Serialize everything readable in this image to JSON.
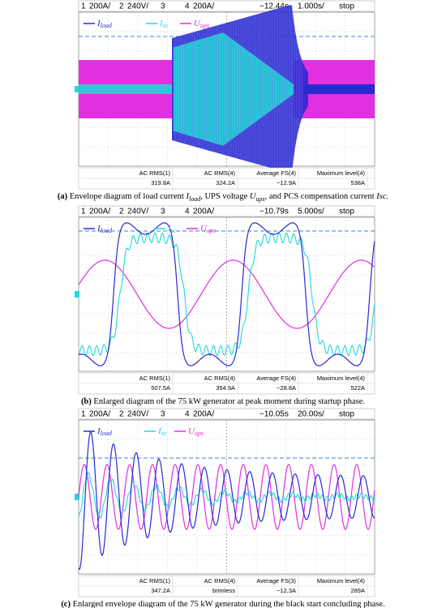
{
  "panels": [
    {
      "header": {
        "ch1_num": "1",
        "ch1": "200A/",
        "ch2_num": "2",
        "ch2": "240V/",
        "ch3_num": "3",
        "ch4_num": "4",
        "ch4": "200A/",
        "time": "−12.44s",
        "scale": "1.000s/",
        "status": "stop"
      },
      "legend": [
        {
          "main": "I",
          "sub": "load"
        },
        {
          "main": "I",
          "sub": "sc"
        },
        {
          "main": "U",
          "sub": "ups"
        }
      ],
      "measurements": [
        {
          "label": "AC RMS(1)",
          "value": "319.8A"
        },
        {
          "label": "AC RMS(4)",
          "value": "324.2A"
        },
        {
          "label": "Average FS(4)",
          "value": "−12.9A"
        },
        {
          "label": "Maximum level(4)",
          "value": "538A"
        }
      ],
      "caption": [
        {
          "text": "(a)",
          "style": "b"
        },
        {
          "text": " Envelope diagram of load current ",
          "style": ""
        },
        {
          "text": "I",
          "style": "i"
        },
        {
          "text": "load",
          "style": "sub"
        },
        {
          "text": ", UPS voltage ",
          "style": ""
        },
        {
          "text": "U",
          "style": "i"
        },
        {
          "text": "ups",
          "style": "sub"
        },
        {
          "text": ", and PCS compensation current ",
          "style": ""
        },
        {
          "text": "Isc.",
          "style": "i"
        }
      ]
    },
    {
      "header": {
        "ch1_num": "1",
        "ch1": "200A/",
        "ch2_num": "2",
        "ch2": "240V/",
        "ch3_num": "3",
        "ch4_num": "4",
        "ch4": "200A/",
        "time": "−10.79s",
        "scale": "5.000s/",
        "status": "stop"
      },
      "legend": [
        {
          "main": "I",
          "sub": "load"
        },
        {
          "main": "I",
          "sub": "sc"
        },
        {
          "main": "U",
          "sub": "ups"
        }
      ],
      "measurements": [
        {
          "label": "AC RMS(1)",
          "value": "507.5A"
        },
        {
          "label": "AC RMS(4)",
          "value": "354.9A"
        },
        {
          "label": "Average FS(4)",
          "value": "−28.8A"
        },
        {
          "label": "Maximum level(4)",
          "value": "522A"
        }
      ],
      "caption": [
        {
          "text": "(b)",
          "style": "b"
        },
        {
          "text": " Enlarged diagram of the 75 kW generator at peak moment during startup phase.",
          "style": ""
        }
      ]
    },
    {
      "header": {
        "ch1_num": "1",
        "ch1": "200A/",
        "ch2_num": "2",
        "ch2": "240V/",
        "ch3_num": "3",
        "ch4_num": "4",
        "ch4": "200A/",
        "time": "−10.05s",
        "scale": "20.00s/",
        "status": "stop"
      },
      "legend": [
        {
          "main": "I",
          "sub": "load"
        },
        {
          "main": "I",
          "sub": "sc"
        },
        {
          "main": "U",
          "sub": "ups"
        }
      ],
      "measurements": [
        {
          "label": "AC RMS(1)",
          "value": "347.2A"
        },
        {
          "label": "AC RMS(4)",
          "value": "brimless"
        },
        {
          "label": "Average FS(3)",
          "value": "−12.3A"
        },
        {
          "label": "Maximum level(4)",
          "value": "289A"
        }
      ],
      "caption": [
        {
          "text": "(c)",
          "style": "b"
        },
        {
          "text": " Enlarged envelope diagram of the 75 kW generator during the black start concluding phase.",
          "style": ""
        }
      ]
    }
  ]
}
